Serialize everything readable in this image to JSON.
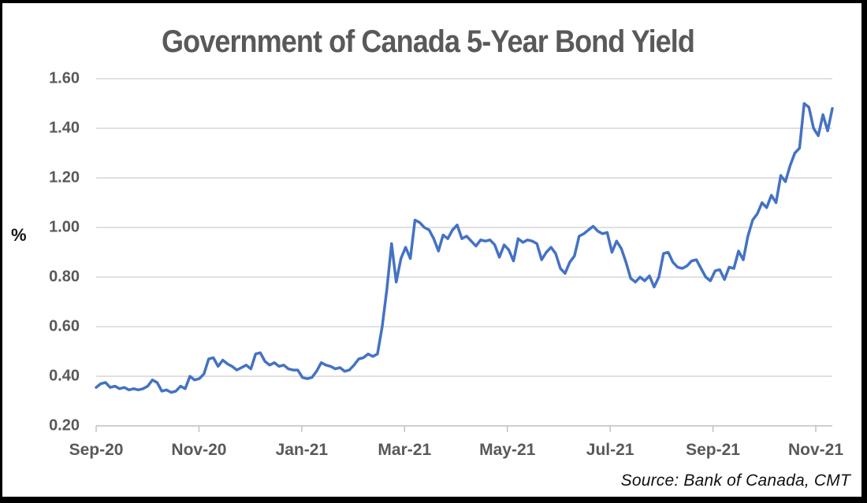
{
  "chart_data": {
    "type": "line",
    "title": "Government of Canada 5-Year Bond Yield",
    "ylabel": "%",
    "source_note": "Source: Bank of Canada, CMT",
    "x_tick_labels": [
      "Sep-20",
      "Nov-20",
      "Jan-21",
      "Mar-21",
      "May-21",
      "Jul-21",
      "Sep-21",
      "Nov-21"
    ],
    "y_tick_labels": [
      "0.20",
      "0.40",
      "0.60",
      "0.80",
      "1.00",
      "1.20",
      "1.40",
      "1.60"
    ],
    "ylim": [
      0.2,
      1.6
    ],
    "grid": "horizontal",
    "legend": "none",
    "x_note": "daily yields plotted from Sep-20 through mid-Nov-21; points evenly spaced",
    "series": [
      {
        "name": "Government of Canada 5-Year Bond Yield (%)",
        "color": "#4472C4",
        "values": [
          0.355,
          0.37,
          0.375,
          0.355,
          0.36,
          0.35,
          0.355,
          0.345,
          0.35,
          0.345,
          0.35,
          0.36,
          0.385,
          0.375,
          0.34,
          0.345,
          0.335,
          0.34,
          0.36,
          0.35,
          0.4,
          0.385,
          0.39,
          0.41,
          0.47,
          0.475,
          0.44,
          0.465,
          0.45,
          0.44,
          0.425,
          0.435,
          0.445,
          0.43,
          0.49,
          0.495,
          0.46,
          0.445,
          0.455,
          0.44,
          0.445,
          0.43,
          0.425,
          0.425,
          0.395,
          0.39,
          0.395,
          0.42,
          0.455,
          0.445,
          0.44,
          0.43,
          0.435,
          0.42,
          0.425,
          0.445,
          0.47,
          0.475,
          0.49,
          0.48,
          0.49,
          0.6,
          0.75,
          0.935,
          0.78,
          0.875,
          0.92,
          0.875,
          1.03,
          1.02,
          1.0,
          0.99,
          0.955,
          0.905,
          0.97,
          0.955,
          0.99,
          1.01,
          0.955,
          0.965,
          0.945,
          0.925,
          0.95,
          0.945,
          0.95,
          0.93,
          0.88,
          0.93,
          0.91,
          0.865,
          0.955,
          0.94,
          0.95,
          0.945,
          0.935,
          0.87,
          0.9,
          0.92,
          0.895,
          0.835,
          0.815,
          0.86,
          0.885,
          0.965,
          0.975,
          0.99,
          1.005,
          0.985,
          0.975,
          0.98,
          0.9,
          0.945,
          0.915,
          0.86,
          0.795,
          0.78,
          0.8,
          0.785,
          0.805,
          0.76,
          0.8,
          0.895,
          0.9,
          0.86,
          0.84,
          0.835,
          0.845,
          0.865,
          0.87,
          0.835,
          0.8,
          0.785,
          0.825,
          0.83,
          0.79,
          0.84,
          0.835,
          0.905,
          0.87,
          0.965,
          1.03,
          1.055,
          1.1,
          1.08,
          1.13,
          1.1,
          1.21,
          1.185,
          1.25,
          1.3,
          1.32,
          1.5,
          1.485,
          1.4,
          1.37,
          1.455,
          1.39,
          1.48
        ]
      }
    ]
  },
  "styles": {
    "line_color": "#4472C4",
    "grid_color": "#D6D6D6",
    "axis_color": "#BFBFBF",
    "tick_text_color": "#595959",
    "title_color": "#595959",
    "dark_text_color": "#111111",
    "frame_border_color": "#000000",
    "background": "#FFFFFF"
  }
}
